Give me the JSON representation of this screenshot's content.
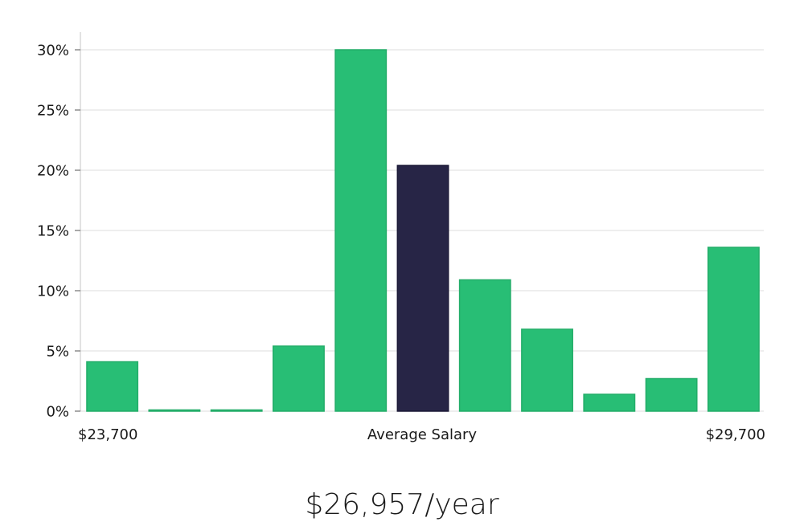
{
  "chart_data": {
    "type": "bar",
    "title": "",
    "xlabel": "Average Salary",
    "ylabel": "",
    "ylim": [
      0,
      30
    ],
    "y_ticks": [
      0,
      5,
      10,
      15,
      20,
      25,
      30
    ],
    "y_tick_labels": [
      "0%",
      "5%",
      "10%",
      "15%",
      "20%",
      "25%",
      "30%"
    ],
    "x_min_label": "$23,700",
    "x_max_label": "$29,700",
    "grid": true,
    "values": [
      4.1,
      0.1,
      0.1,
      5.4,
      30.0,
      20.4,
      10.9,
      6.8,
      1.4,
      2.7,
      13.6
    ],
    "highlight_index": 5,
    "colors": {
      "bar": "#28be75",
      "bar_edge": "#23ad69",
      "highlight": "#272546",
      "grid": "#e3e3e3",
      "axis": "#cfcfcf"
    }
  },
  "summary": {
    "salary": "$26,957/year"
  }
}
